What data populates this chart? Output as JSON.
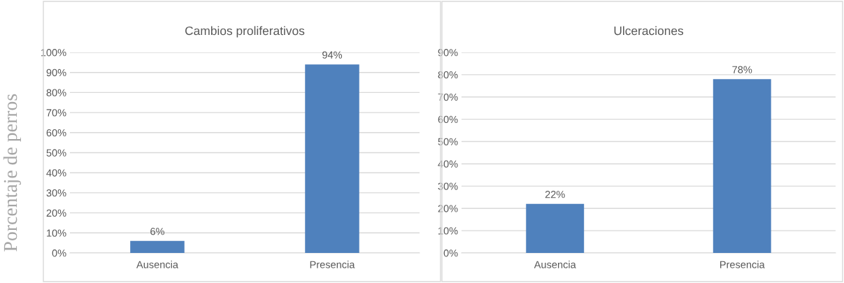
{
  "chart_data": [
    {
      "type": "bar",
      "title": "Cambios proliferativos",
      "ylabel": "Porcentaje de perros",
      "categories": [
        "Ausencia",
        "Presencia"
      ],
      "values": [
        6,
        94
      ],
      "value_labels": [
        "6%",
        "94%"
      ],
      "color": "#4f81bd",
      "ylim": [
        0,
        100
      ],
      "yticks": [
        {
          "value": 0,
          "label": "0%"
        },
        {
          "value": 10,
          "label": "10%"
        },
        {
          "value": 20,
          "label": "20%"
        },
        {
          "value": 30,
          "label": "30%"
        },
        {
          "value": 40,
          "label": "40%"
        },
        {
          "value": 50,
          "label": "50%"
        },
        {
          "value": 60,
          "label": "60%"
        },
        {
          "value": 70,
          "label": "70%"
        },
        {
          "value": 80,
          "label": "80%"
        },
        {
          "value": 90,
          "label": "90%"
        },
        {
          "value": 100,
          "label": "100%"
        }
      ],
      "grid": "y",
      "legend": false
    },
    {
      "type": "bar",
      "title": "Ulceraciones",
      "categories": [
        "Ausencia",
        "Presencia"
      ],
      "values": [
        22,
        78
      ],
      "value_labels": [
        "22%",
        "78%"
      ],
      "color": "#4f81bd",
      "ylim": [
        0,
        90
      ],
      "yticks": [
        {
          "value": 0,
          "label": "0%"
        },
        {
          "value": 10,
          "label": "10%"
        },
        {
          "value": 20,
          "label": "20%"
        },
        {
          "value": 30,
          "label": "30%"
        },
        {
          "value": 40,
          "label": "40%"
        },
        {
          "value": 50,
          "label": "50%"
        },
        {
          "value": 60,
          "label": "60%"
        },
        {
          "value": 70,
          "label": "70%"
        },
        {
          "value": 80,
          "label": "80%"
        },
        {
          "value": 90,
          "label": "90%"
        }
      ],
      "grid": "y",
      "legend": false
    }
  ]
}
